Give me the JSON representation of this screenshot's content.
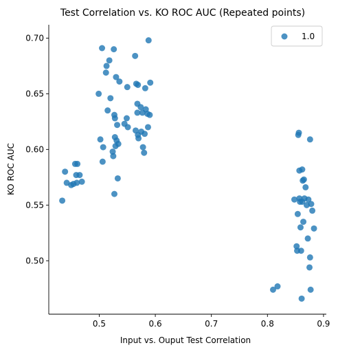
{
  "chart_data": {
    "type": "scatter",
    "title": "Test Correlation vs. KO ROC AUC (Repeated points)",
    "xlabel": "Input vs. Ouput Test Correlation",
    "ylabel": "KO ROC AUC",
    "xlim": [
      0.41,
      0.905
    ],
    "ylim": [
      0.452,
      0.712
    ],
    "x_ticks": [
      0.5,
      0.6,
      0.7,
      0.8,
      0.9
    ],
    "x_tick_labels": [
      "0.5",
      "0.6",
      "0.7",
      "0.8",
      "0.9"
    ],
    "y_ticks": [
      0.5,
      0.55,
      0.6,
      0.65,
      0.7
    ],
    "y_tick_labels": [
      "0.50",
      "0.55",
      "0.60",
      "0.65",
      "0.70"
    ],
    "grid": false,
    "legend_position": "top-right",
    "series": [
      {
        "name": "1.0",
        "color": "#1f77b4",
        "points": [
          [
            0.434,
            0.554
          ],
          [
            0.439,
            0.58
          ],
          [
            0.442,
            0.57
          ],
          [
            0.45,
            0.568
          ],
          [
            0.454,
            0.569
          ],
          [
            0.457,
            0.587
          ],
          [
            0.459,
            0.577
          ],
          [
            0.46,
            0.57
          ],
          [
            0.461,
            0.587
          ],
          [
            0.465,
            0.577
          ],
          [
            0.469,
            0.571
          ],
          [
            0.499,
            0.65
          ],
          [
            0.502,
            0.609
          ],
          [
            0.505,
            0.691
          ],
          [
            0.506,
            0.589
          ],
          [
            0.507,
            0.602
          ],
          [
            0.512,
            0.669
          ],
          [
            0.513,
            0.675
          ],
          [
            0.515,
            0.635
          ],
          [
            0.518,
            0.68
          ],
          [
            0.52,
            0.646
          ],
          [
            0.524,
            0.598
          ],
          [
            0.525,
            0.594
          ],
          [
            0.526,
            0.69
          ],
          [
            0.527,
            0.631
          ],
          [
            0.527,
            0.56
          ],
          [
            0.528,
            0.628
          ],
          [
            0.528,
            0.611
          ],
          [
            0.529,
            0.603
          ],
          [
            0.53,
            0.665
          ],
          [
            0.531,
            0.608
          ],
          [
            0.532,
            0.622
          ],
          [
            0.533,
            0.574
          ],
          [
            0.534,
            0.605
          ],
          [
            0.536,
            0.661
          ],
          [
            0.545,
            0.623
          ],
          [
            0.549,
            0.628
          ],
          [
            0.55,
            0.656
          ],
          [
            0.551,
            0.62
          ],
          [
            0.564,
            0.684
          ],
          [
            0.565,
            0.617
          ],
          [
            0.566,
            0.659
          ],
          [
            0.568,
            0.641
          ],
          [
            0.568,
            0.633
          ],
          [
            0.569,
            0.658
          ],
          [
            0.569,
            0.613
          ],
          [
            0.57,
            0.61
          ],
          [
            0.574,
            0.638
          ],
          [
            0.575,
            0.616
          ],
          [
            0.577,
            0.633
          ],
          [
            0.578,
            0.602
          ],
          [
            0.58,
            0.597
          ],
          [
            0.581,
            0.614
          ],
          [
            0.582,
            0.655
          ],
          [
            0.583,
            0.636
          ],
          [
            0.586,
            0.632
          ],
          [
            0.587,
            0.62
          ],
          [
            0.588,
            0.698
          ],
          [
            0.59,
            0.631
          ],
          [
            0.591,
            0.66
          ],
          [
            0.81,
            0.474
          ],
          [
            0.818,
            0.477
          ],
          [
            0.848,
            0.555
          ],
          [
            0.852,
            0.513
          ],
          [
            0.853,
            0.509
          ],
          [
            0.854,
            0.542
          ],
          [
            0.855,
            0.613
          ],
          [
            0.856,
            0.615
          ],
          [
            0.857,
            0.581
          ],
          [
            0.857,
            0.556
          ],
          [
            0.858,
            0.553
          ],
          [
            0.859,
            0.53
          ],
          [
            0.86,
            0.509
          ],
          [
            0.861,
            0.466
          ],
          [
            0.862,
            0.582
          ],
          [
            0.862,
            0.553
          ],
          [
            0.863,
            0.572
          ],
          [
            0.864,
            0.535
          ],
          [
            0.865,
            0.573
          ],
          [
            0.866,
            0.556
          ],
          [
            0.868,
            0.566
          ],
          [
            0.87,
            0.55
          ],
          [
            0.872,
            0.52
          ],
          [
            0.873,
            0.555
          ],
          [
            0.875,
            0.494
          ],
          [
            0.876,
            0.609
          ],
          [
            0.876,
            0.503
          ],
          [
            0.877,
            0.474
          ],
          [
            0.878,
            0.551
          ],
          [
            0.88,
            0.545
          ],
          [
            0.883,
            0.529
          ]
        ]
      }
    ]
  }
}
